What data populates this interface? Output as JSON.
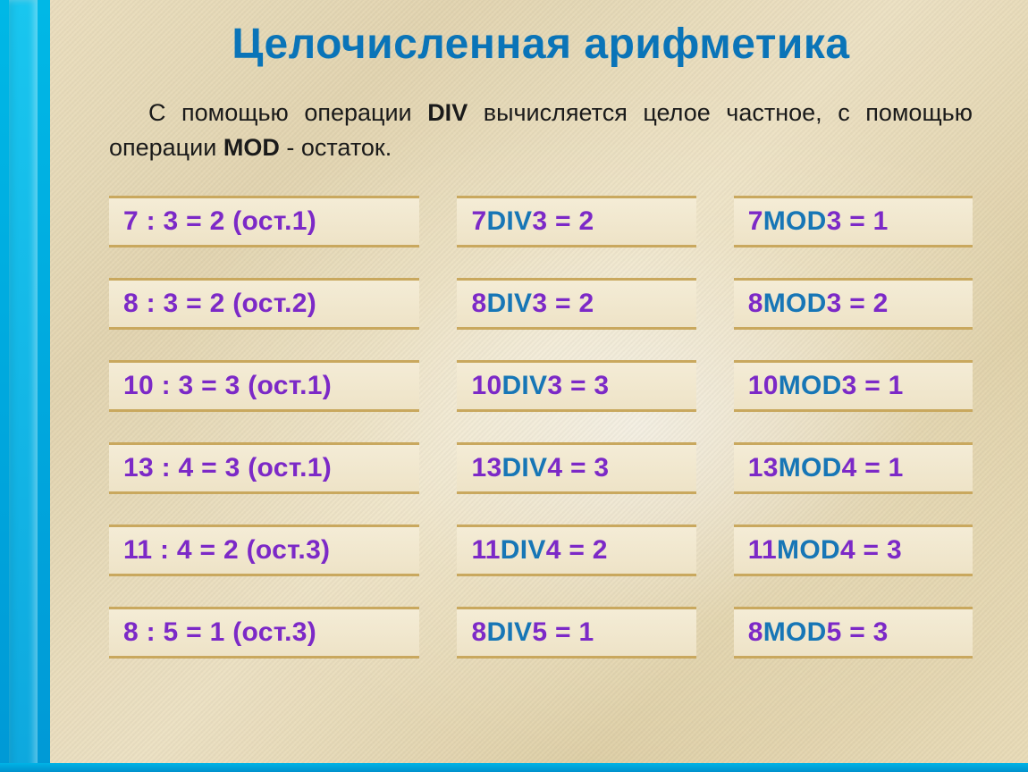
{
  "title": "Целочисленная арифметика",
  "intro": {
    "pre": "С помощью операции ",
    "kw1": "DIV",
    "mid": " вычисляется целое частное, с помощью операции ",
    "kw2": "MOD",
    "post": " - остаток."
  },
  "rows": [
    {
      "col1": {
        "text": "7 : 3 = 2 (ост.1)"
      },
      "col2": {
        "a": "7 ",
        "op": "DIV",
        "b": " 3 = 2"
      },
      "col3": {
        "a": "7 ",
        "op": "MOD",
        "b": " 3 = 1"
      }
    },
    {
      "col1": {
        "text": "8 : 3 = 2 (ост.2)"
      },
      "col2": {
        "a": "8 ",
        "op": "DIV",
        "b": " 3 = 2"
      },
      "col3": {
        "a": "8 ",
        "op": "MOD",
        "b": " 3 = 2"
      }
    },
    {
      "col1": {
        "text": "10 : 3 = 3 (ост.1)"
      },
      "col2": {
        "a": "10 ",
        "op": "DIV",
        "b": " 3 = 3"
      },
      "col3": {
        "a": "10 ",
        "op": "MOD",
        "b": " 3 = 1"
      }
    },
    {
      "col1": {
        "text": "13 : 4 = 3 (ост.1)"
      },
      "col2": {
        "a": "13 ",
        "op": "DIV",
        "b": " 4 = 3"
      },
      "col3": {
        "a": "13 ",
        "op": "MOD",
        "b": " 4 = 1"
      }
    },
    {
      "col1": {
        "text": "11 : 4 = 2 (ост.3)"
      },
      "col2": {
        "a": "11 ",
        "op": "DIV",
        "b": " 4 = 2"
      },
      "col3": {
        "a": "11 ",
        "op": "MOD",
        "b": " 4 = 3"
      }
    },
    {
      "col1": {
        "text": "8 : 5 = 1 (ост.3)"
      },
      "col2": {
        "a": "8 ",
        "op": "DIV",
        "b": " 5 = 1"
      },
      "col3": {
        "a": "8 ",
        "op": "MOD",
        "b": " 5 = 3"
      }
    }
  ],
  "colors": {
    "title": "#0a74b8",
    "expr": "#7c29c7",
    "keyword": "#1776b6",
    "stripe_top": "#00b8e6",
    "stripe_bottom": "#0091cc",
    "cell_border": "#c9a85e"
  }
}
